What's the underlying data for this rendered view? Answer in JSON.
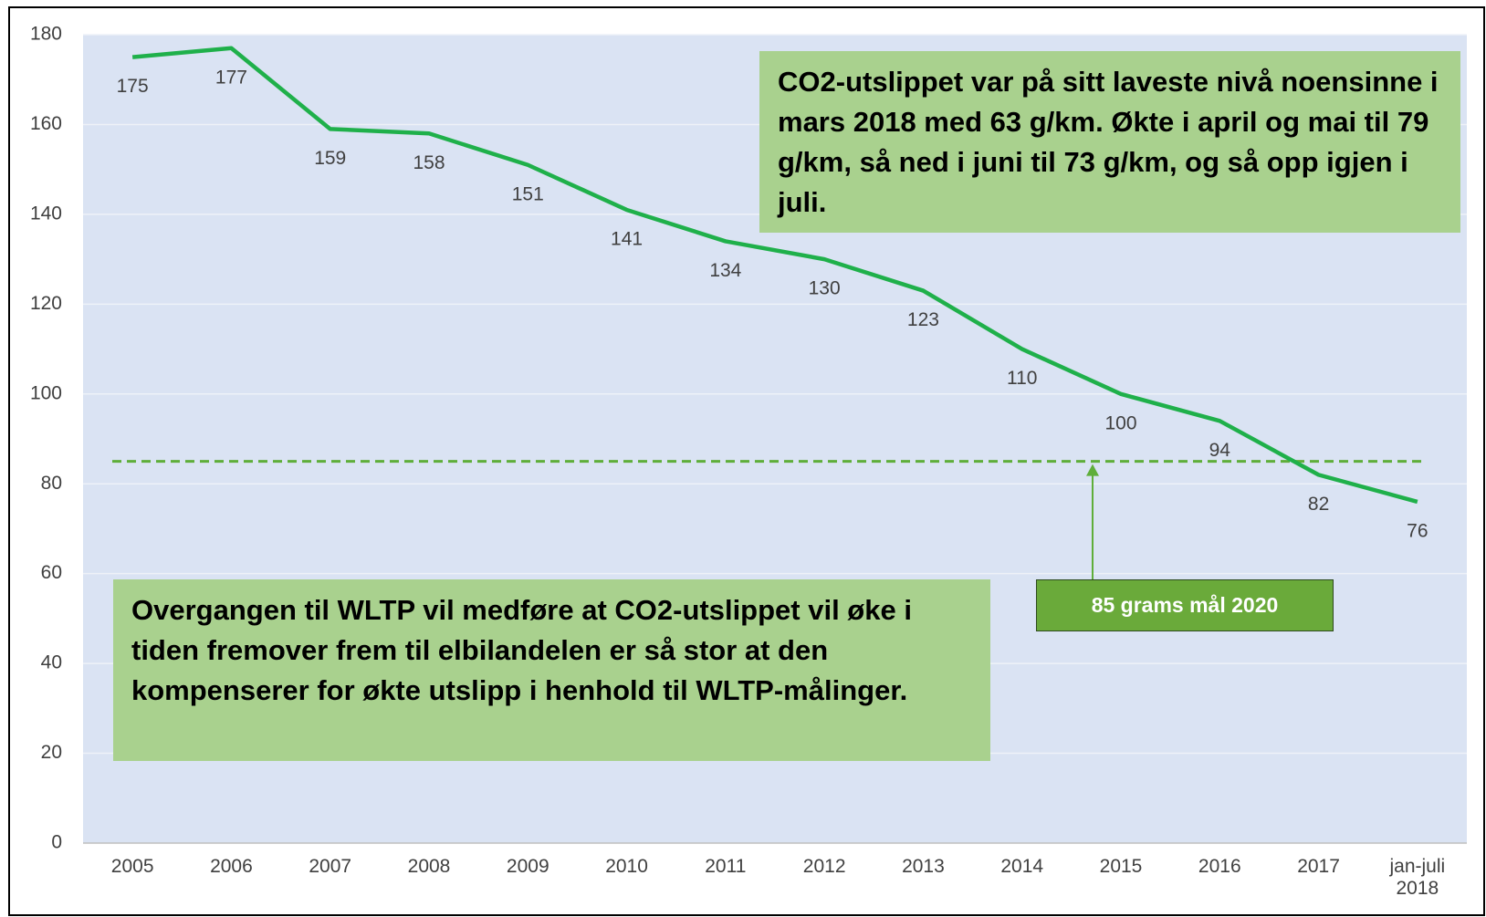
{
  "chart_data": {
    "type": "line",
    "categories": [
      "2005",
      "2006",
      "2007",
      "2008",
      "2009",
      "2010",
      "2011",
      "2012",
      "2013",
      "2014",
      "2015",
      "2016",
      "2017",
      "jan-juli 2018"
    ],
    "values": [
      175,
      177,
      159,
      158,
      151,
      141,
      134,
      130,
      123,
      110,
      100,
      94,
      82,
      76
    ],
    "color": "#1fb04a",
    "ylim": [
      0,
      180
    ],
    "yticks": [
      0,
      20,
      40,
      60,
      80,
      100,
      120,
      140,
      160,
      180
    ],
    "grid": true,
    "reference_line": {
      "value": 85,
      "label": "85 grams mål 2020",
      "color": "#5fae3a"
    },
    "annotations": [
      "CO2-utslippet var på sitt laveste nivå noensinne i mars 2018 med 63 g/km. Økte i april og mai til 79 g/km, så ned i juni til 73 g/km, og så opp igjen i juli.",
      "Overgangen til WLTP vil medføre at CO2-utslippet vil øke i tiden fremover frem til elbilandelen er så stor at den kompenserer for økte utslipp i henhold til WLTP-målinger."
    ]
  }
}
